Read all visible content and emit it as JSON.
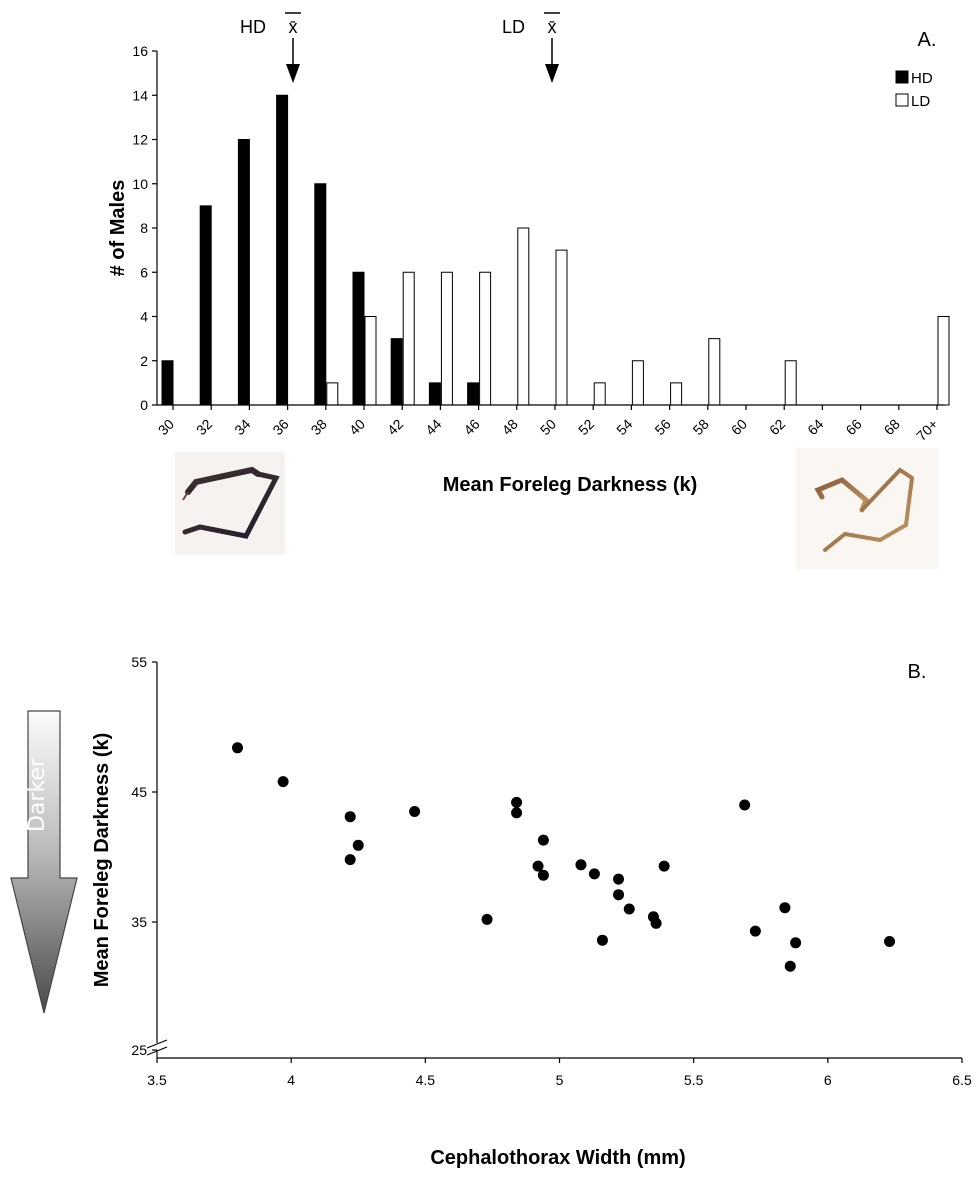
{
  "chart_data": [
    {
      "type": "bar",
      "panel_label": "A.",
      "xlabel": "Mean Foreleg Darkness (k)",
      "ylabel": "# of Males",
      "categories": [
        "30",
        "32",
        "34",
        "36",
        "38",
        "40",
        "42",
        "44",
        "46",
        "48",
        "50",
        "52",
        "54",
        "56",
        "58",
        "60",
        "62",
        "64",
        "66",
        "68",
        "70+"
      ],
      "series": [
        {
          "name": "HD",
          "color": "#000000",
          "values": [
            2,
            9,
            12,
            14,
            10,
            6,
            3,
            1,
            1,
            0,
            0,
            0,
            0,
            0,
            0,
            0,
            0,
            0,
            0,
            0,
            0
          ]
        },
        {
          "name": "LD",
          "color": "#ffffff",
          "values": [
            0,
            0,
            0,
            0,
            1,
            4,
            6,
            6,
            6,
            8,
            7,
            1,
            2,
            1,
            3,
            0,
            2,
            0,
            0,
            0,
            4
          ]
        }
      ],
      "ylim": [
        0,
        16
      ],
      "yticks": [
        0,
        2,
        4,
        6,
        8,
        10,
        12,
        14,
        16
      ],
      "legend": "top-right",
      "annotations": [
        {
          "label": "HD",
          "symbol": "x̄",
          "position_category": "37"
        },
        {
          "label": "LD",
          "symbol": "x̄",
          "position_category": "51"
        }
      ]
    },
    {
      "type": "scatter",
      "panel_label": "B.",
      "xlabel": "Cephalothorax Width (mm)",
      "ylabel": "Mean Foreleg Darkness (k)",
      "xlim": [
        3.5,
        6.5
      ],
      "ylim": [
        25,
        55
      ],
      "xticks": [
        "3.5",
        "4",
        "4.5",
        "5",
        "5.5",
        "6",
        "6.5"
      ],
      "yticks": [
        "25",
        "35",
        "45",
        "55"
      ],
      "axis_break": "y",
      "side_arrow_label": "Darker",
      "points": [
        {
          "x": 3.8,
          "y": 48.4
        },
        {
          "x": 3.97,
          "y": 45.8
        },
        {
          "x": 4.22,
          "y": 43.1
        },
        {
          "x": 4.22,
          "y": 39.8
        },
        {
          "x": 4.25,
          "y": 40.9
        },
        {
          "x": 4.46,
          "y": 43.5
        },
        {
          "x": 4.73,
          "y": 35.2
        },
        {
          "x": 4.84,
          "y": 44.2
        },
        {
          "x": 4.84,
          "y": 43.4
        },
        {
          "x": 4.92,
          "y": 39.3
        },
        {
          "x": 4.94,
          "y": 41.3
        },
        {
          "x": 4.94,
          "y": 38.6
        },
        {
          "x": 5.08,
          "y": 39.4
        },
        {
          "x": 5.13,
          "y": 38.7
        },
        {
          "x": 5.16,
          "y": 33.6
        },
        {
          "x": 5.22,
          "y": 38.3
        },
        {
          "x": 5.22,
          "y": 37.1
        },
        {
          "x": 5.26,
          "y": 36.0
        },
        {
          "x": 5.35,
          "y": 35.4
        },
        {
          "x": 5.36,
          "y": 34.9
        },
        {
          "x": 5.39,
          "y": 39.3
        },
        {
          "x": 5.69,
          "y": 44.0
        },
        {
          "x": 5.73,
          "y": 34.3
        },
        {
          "x": 5.84,
          "y": 36.1
        },
        {
          "x": 5.86,
          "y": 31.6
        },
        {
          "x": 5.88,
          "y": 33.4
        },
        {
          "x": 6.23,
          "y": 33.5
        }
      ]
    }
  ]
}
